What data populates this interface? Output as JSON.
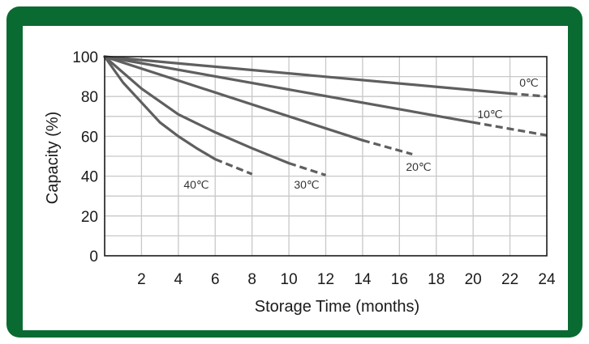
{
  "colors": {
    "frame": "#0a6b32",
    "grid": "#c8c8c8",
    "axis": "#1a1a1a",
    "series": "#5f5f5f"
  },
  "chart_data": {
    "type": "line",
    "title": "",
    "xlabel": "Storage Time (months)",
    "ylabel": "Capacity (%)",
    "xlim": [
      0,
      24
    ],
    "ylim": [
      0,
      100
    ],
    "xticks": [
      2,
      4,
      6,
      8,
      10,
      12,
      14,
      16,
      18,
      20,
      22,
      24
    ],
    "yticks": [
      0,
      20,
      40,
      60,
      80,
      100
    ],
    "grid": true,
    "legend": "inline labels",
    "series": [
      {
        "name": "0℃",
        "solid": [
          [
            0,
            100
          ],
          [
            22,
            81.5
          ]
        ],
        "dashed": [
          [
            22,
            81.5
          ],
          [
            24,
            80
          ]
        ]
      },
      {
        "name": "10℃",
        "solid": [
          [
            0,
            100
          ],
          [
            20,
            67
          ]
        ],
        "dashed": [
          [
            20,
            67
          ],
          [
            24,
            60.5
          ]
        ]
      },
      {
        "name": "20℃",
        "solid": [
          [
            0,
            100
          ],
          [
            14,
            58
          ]
        ],
        "dashed": [
          [
            14,
            58
          ],
          [
            16.7,
            51
          ]
        ]
      },
      {
        "name": "30℃",
        "solid": [
          [
            0,
            100
          ],
          [
            2,
            84
          ],
          [
            4,
            71
          ],
          [
            6,
            62
          ],
          [
            8,
            54
          ],
          [
            10,
            46.5
          ]
        ],
        "dashed": [
          [
            10,
            46.5
          ],
          [
            12,
            40.5
          ]
        ]
      },
      {
        "name": "40℃",
        "solid": [
          [
            0,
            100
          ],
          [
            1,
            87
          ],
          [
            2,
            77
          ],
          [
            3,
            67
          ],
          [
            4,
            60
          ],
          [
            5,
            54
          ],
          [
            6,
            48.5
          ]
        ],
        "dashed": [
          [
            6,
            48.5
          ],
          [
            8,
            41
          ]
        ]
      }
    ]
  }
}
